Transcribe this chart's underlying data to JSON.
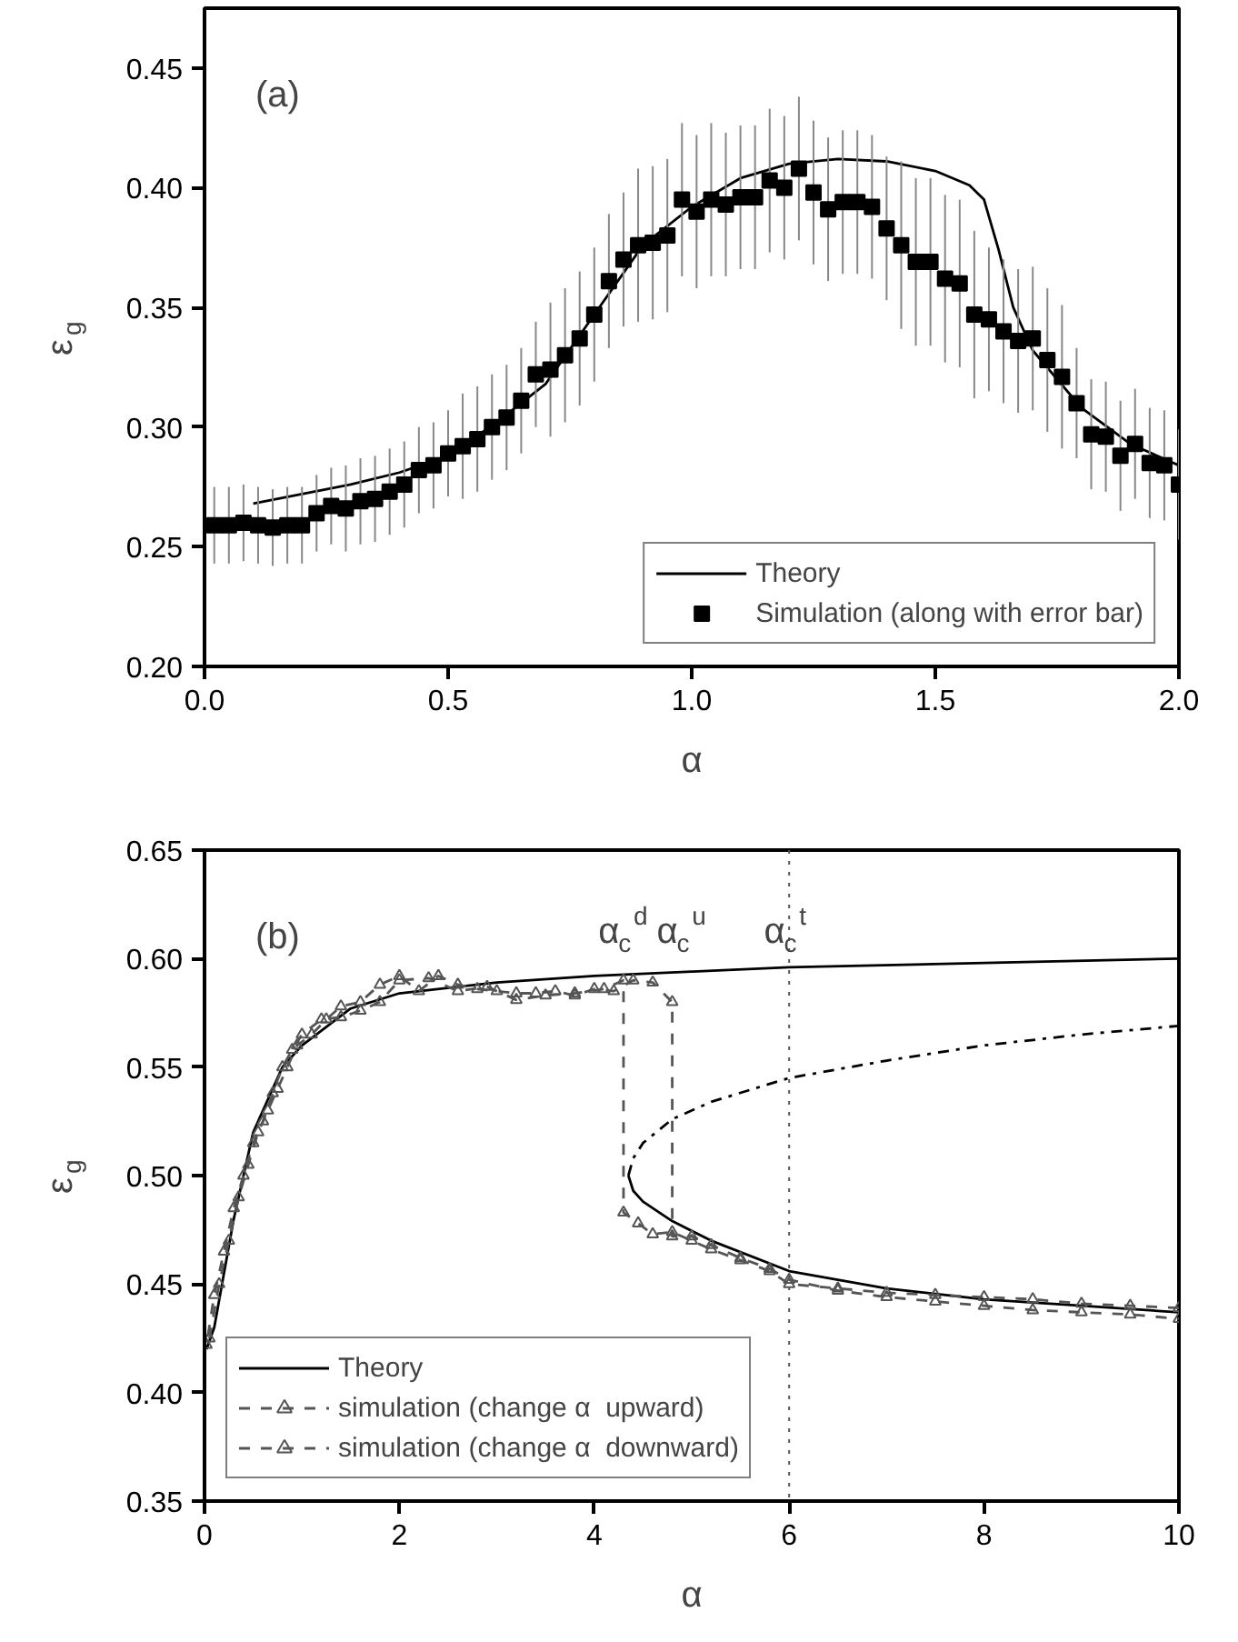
{
  "chart_data": [
    {
      "type": "line",
      "title": "(a)",
      "xlabel": "α",
      "ylabel": "ε$_{g}$",
      "xlim": [
        0,
        2
      ],
      "ylim": [
        0.2,
        0.475
      ],
      "xticks": [
        {
          "value": 0,
          "label": "0.0"
        },
        {
          "value": 0.5,
          "label": "0.5"
        },
        {
          "value": 1,
          "label": "1.0"
        },
        {
          "value": 1.5,
          "label": "1.5"
        },
        {
          "value": 2,
          "label": "2.0"
        }
      ],
      "yticks": [
        {
          "value": 0.2,
          "label": "0.20"
        },
        0.25,
        {
          "value": 0.3,
          "label": "0.30"
        },
        0.35,
        {
          "value": 0.4,
          "label": "0.40"
        },
        0.45
      ],
      "grid": false,
      "legend": "bottom right",
      "series": [
        {
          "name": "Theory",
          "color": "#000000",
          "x": [
            0.1,
            0.2,
            0.3,
            0.4,
            0.5,
            0.6,
            0.7,
            0.8,
            0.9,
            1.0,
            1.1,
            1.2,
            1.3,
            1.4,
            1.5,
            1.57,
            1.6,
            1.63,
            1.66,
            1.7,
            1.8,
            1.9,
            2.0
          ],
          "values": [
            0.268,
            0.272,
            0.276,
            0.281,
            0.288,
            0.302,
            0.318,
            0.347,
            0.376,
            0.392,
            0.404,
            0.41,
            0.412,
            0.411,
            0.407,
            0.401,
            0.395,
            0.374,
            0.35,
            0.332,
            0.308,
            0.293,
            0.284
          ]
        },
        {
          "name": "Simulation (along with error bar)",
          "type": "scatter",
          "marker": "square",
          "color": "#000000",
          "x": [
            0.02,
            0.05,
            0.08,
            0.11,
            0.14,
            0.17,
            0.2,
            0.23,
            0.26,
            0.29,
            0.32,
            0.35,
            0.38,
            0.41,
            0.44,
            0.47,
            0.5,
            0.53,
            0.56,
            0.59,
            0.62,
            0.65,
            0.68,
            0.71,
            0.74,
            0.77,
            0.8,
            0.83,
            0.86,
            0.89,
            0.92,
            0.95,
            0.98,
            1.01,
            1.04,
            1.07,
            1.1,
            1.13,
            1.16,
            1.19,
            1.22,
            1.25,
            1.28,
            1.31,
            1.34,
            1.37,
            1.4,
            1.43,
            1.46,
            1.49,
            1.52,
            1.55,
            1.58,
            1.61,
            1.64,
            1.67,
            1.7,
            1.73,
            1.76,
            1.79,
            1.82,
            1.85,
            1.88,
            1.91,
            1.94,
            1.97,
            2.0
          ],
          "values": [
            0.259,
            0.259,
            0.26,
            0.259,
            0.258,
            0.259,
            0.259,
            0.264,
            0.267,
            0.266,
            0.269,
            0.27,
            0.273,
            0.276,
            0.282,
            0.284,
            0.289,
            0.292,
            0.295,
            0.3,
            0.304,
            0.311,
            0.322,
            0.324,
            0.33,
            0.337,
            0.347,
            0.361,
            0.37,
            0.376,
            0.377,
            0.38,
            0.395,
            0.39,
            0.395,
            0.393,
            0.396,
            0.396,
            0.403,
            0.4,
            0.408,
            0.398,
            0.391,
            0.394,
            0.394,
            0.392,
            0.383,
            0.376,
            0.369,
            0.369,
            0.362,
            0.36,
            0.347,
            0.345,
            0.34,
            0.336,
            0.337,
            0.328,
            0.321,
            0.31,
            0.297,
            0.296,
            0.288,
            0.293,
            0.285,
            0.284,
            0.276
          ],
          "errors": [
            0.016,
            0.016,
            0.016,
            0.016,
            0.016,
            0.016,
            0.016,
            0.016,
            0.016,
            0.018,
            0.018,
            0.018,
            0.018,
            0.018,
            0.018,
            0.018,
            0.018,
            0.022,
            0.022,
            0.022,
            0.022,
            0.022,
            0.022,
            0.028,
            0.028,
            0.028,
            0.028,
            0.028,
            0.028,
            0.032,
            0.032,
            0.032,
            0.032,
            0.032,
            0.032,
            0.03,
            0.03,
            0.03,
            0.03,
            0.03,
            0.03,
            0.03,
            0.03,
            0.03,
            0.03,
            0.03,
            0.03,
            0.035,
            0.035,
            0.035,
            0.035,
            0.035,
            0.035,
            0.03,
            0.03,
            0.03,
            0.03,
            0.03,
            0.03,
            0.023,
            0.023,
            0.023,
            0.023,
            0.023,
            0.023,
            0.023,
            0.023
          ]
        }
      ]
    },
    {
      "type": "line",
      "title": "(b)",
      "xlabel": "α",
      "ylabel": "ε$_{g}$",
      "xlim": [
        0,
        10
      ],
      "ylim": [
        0.35,
        0.65
      ],
      "xticks": [
        0,
        2,
        4,
        6,
        8,
        10
      ],
      "yticks": [
        0.35,
        {
          "value": 0.4,
          "label": "0.40"
        },
        0.45,
        {
          "value": 0.5,
          "label": "0.50"
        },
        0.55,
        {
          "value": 0.6,
          "label": "0.60"
        },
        0.65
      ],
      "grid": false,
      "legend": "bottom left",
      "annotations": [
        "α$_{c}$$^{d}$",
        "α$_{c}$$^{u}$"
      ],
      "ref_lines": [
        {
          "axis": "x",
          "value": 6,
          "label": "α$_{c}$$^{t}$",
          "line_style": "dotted",
          "color": "#555555"
        }
      ],
      "series": [
        {
          "name": "Theory",
          "color": "#000000",
          "line_style": "solid",
          "x": [
            0.02,
            0.1,
            0.3,
            0.5,
            0.8,
            1.0,
            1.5,
            2,
            3,
            4,
            5,
            6,
            8,
            10
          ],
          "values": [
            0.42,
            0.43,
            0.48,
            0.52,
            0.55,
            0.56,
            0.577,
            0.584,
            0.589,
            0.592,
            0.594,
            0.596,
            0.598,
            0.6
          ]
        },
        {
          "color": "#000000",
          "line_style": "dashdot",
          "x": [
            4.35,
            4.4,
            4.5,
            4.8,
            5.2,
            6,
            7,
            8,
            9,
            10
          ],
          "values": [
            0.5,
            0.508,
            0.515,
            0.526,
            0.534,
            0.545,
            0.553,
            0.56,
            0.565,
            0.569
          ]
        },
        {
          "color": "#000000",
          "line_style": "solid",
          "x": [
            4.35,
            4.4,
            4.5,
            4.8,
            5.2,
            6,
            7,
            8,
            9,
            10
          ],
          "values": [
            0.5,
            0.493,
            0.488,
            0.479,
            0.47,
            0.456,
            0.448,
            0.443,
            0.44,
            0.437
          ]
        },
        {
          "name": "simulation (change α  upward)",
          "color": "#555555",
          "line_style": "dashed",
          "marker": "triangle",
          "x": [
            0.05,
            0.15,
            0.25,
            0.35,
            0.45,
            0.55,
            0.65,
            0.75,
            0.85,
            0.95,
            1.1,
            1.25,
            1.4,
            1.6,
            1.8,
            2.0,
            2.2,
            2.4,
            2.6,
            2.8,
            3.0,
            3.2,
            3.4,
            3.6,
            3.8,
            4.0,
            4.2,
            4.4,
            4.6,
            4.8,
            4.8,
            5.0,
            5.2,
            5.5,
            5.8,
            6.0,
            6.5,
            7,
            7.5,
            8,
            8.5,
            9,
            9.5,
            10
          ],
          "values": [
            0.425,
            0.45,
            0.47,
            0.49,
            0.505,
            0.52,
            0.53,
            0.54,
            0.55,
            0.56,
            0.565,
            0.572,
            0.578,
            0.58,
            0.588,
            0.592,
            0.585,
            0.592,
            0.588,
            0.586,
            0.585,
            0.584,
            0.584,
            0.585,
            0.583,
            0.586,
            0.585,
            0.59,
            0.589,
            0.58,
            0.472,
            0.472,
            0.468,
            0.462,
            0.457,
            0.452,
            0.447,
            0.444,
            0.442,
            0.44,
            0.438,
            0.437,
            0.436,
            0.434
          ]
        },
        {
          "name": "simulation (change α  downward)",
          "color": "#555555",
          "line_style": "dashed",
          "marker": "triangle",
          "x": [
            10,
            9.5,
            9,
            8.5,
            8,
            7.5,
            7,
            6.5,
            6.0,
            5.8,
            5.5,
            5.2,
            5.0,
            4.8,
            4.6,
            4.45,
            4.3,
            4.3,
            4.1,
            3.8,
            3.5,
            3.2,
            2.9,
            2.6,
            2.3,
            2.0,
            1.8,
            1.6,
            1.4,
            1.2,
            1.0,
            0.9,
            0.8,
            0.7,
            0.6,
            0.5,
            0.4,
            0.3,
            0.2,
            0.1,
            0.02
          ],
          "values": [
            0.439,
            0.44,
            0.441,
            0.443,
            0.444,
            0.445,
            0.446,
            0.448,
            0.45,
            0.456,
            0.461,
            0.466,
            0.47,
            0.474,
            0.473,
            0.478,
            0.483,
            0.59,
            0.586,
            0.584,
            0.583,
            0.581,
            0.587,
            0.585,
            0.591,
            0.59,
            0.58,
            0.576,
            0.573,
            0.572,
            0.565,
            0.558,
            0.55,
            0.538,
            0.525,
            0.515,
            0.5,
            0.485,
            0.465,
            0.445,
            0.422
          ]
        }
      ]
    }
  ]
}
